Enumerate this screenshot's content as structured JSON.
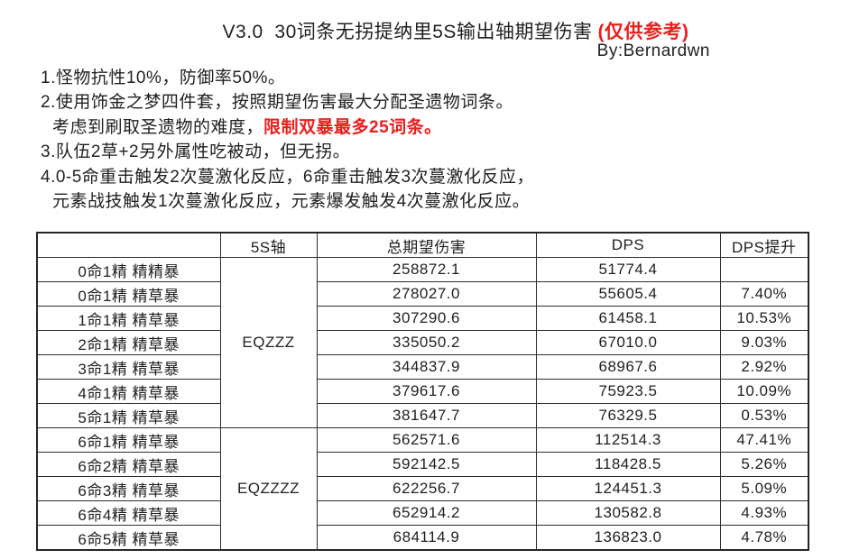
{
  "colors": {
    "accent_red": "#e8201e",
    "text": "#1f1f1f",
    "table_border": "#2e2e2e"
  },
  "header": {
    "title_main": "V3.0  30词条无拐提纳里5S输出轴期望伤害",
    "title_note": "(仅供参考)",
    "byline": "By:Bernardwn"
  },
  "notes": {
    "line1": "1.怪物抗性10%，防御率50%。",
    "line2": "2.使用饰金之梦四件套，按照期望伤害最大分配圣遗物词条。",
    "line3_black": "考虑到刷取圣遗物的难度，",
    "line3_red": "限制双暴最多25词条。",
    "line4": "3.队伍2草+2另外属性吃被动，但无拐。",
    "line5": "4.0-5命重击触发2次蔓激化反应，6命重击触发3次蔓激化反应，",
    "line6": "元素战技触发1次蔓激化反应，元素爆发触发4次蔓激化反应。"
  },
  "table": {
    "headers": [
      "",
      "5S轴",
      "总期望伤害",
      "DPS",
      "DPS提升"
    ],
    "groups": [
      {
        "axis": "EQZZZ",
        "rows": [
          {
            "label": "0命1精 精精暴",
            "total": "258872.1",
            "dps": "51774.4",
            "gain": ""
          },
          {
            "label": "0命1精 精草暴",
            "total": "278027.0",
            "dps": "55605.4",
            "gain": "7.40%"
          },
          {
            "label": "1命1精 精草暴",
            "total": "307290.6",
            "dps": "61458.1",
            "gain": "10.53%"
          },
          {
            "label": "2命1精 精草暴",
            "total": "335050.2",
            "dps": "67010.0",
            "gain": "9.03%"
          },
          {
            "label": "3命1精 精草暴",
            "total": "344837.9",
            "dps": "68967.6",
            "gain": "2.92%"
          },
          {
            "label": "4命1精 精草暴",
            "total": "379617.6",
            "dps": "75923.5",
            "gain": "10.09%"
          },
          {
            "label": "5命1精 精草暴",
            "total": "381647.7",
            "dps": "76329.5",
            "gain": "0.53%"
          }
        ]
      },
      {
        "axis": "EQZZZZ",
        "rows": [
          {
            "label": "6命1精 精草暴",
            "total": "562571.6",
            "dps": "112514.3",
            "gain": "47.41%"
          },
          {
            "label": "6命2精 精草暴",
            "total": "592142.5",
            "dps": "118428.5",
            "gain": "5.26%"
          },
          {
            "label": "6命3精 精草暴",
            "total": "622256.7",
            "dps": "124451.3",
            "gain": "5.09%"
          },
          {
            "label": "6命4精 精草暴",
            "total": "652914.2",
            "dps": "130582.8",
            "gain": "4.93%"
          },
          {
            "label": "6命5精 精草暴",
            "total": "684114.9",
            "dps": "136823.0",
            "gain": "4.78%"
          }
        ]
      }
    ]
  }
}
